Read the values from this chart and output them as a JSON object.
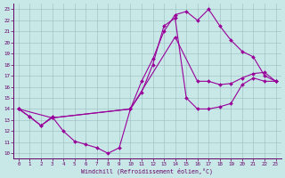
{
  "xlabel": "Windchill (Refroidissement éolien,°C)",
  "background_color": "#c8e8e8",
  "line_color": "#990099",
  "xlim": [
    -0.5,
    23.5
  ],
  "ylim": [
    9.5,
    23.5
  ],
  "xticks": [
    0,
    1,
    2,
    3,
    4,
    5,
    6,
    7,
    8,
    9,
    10,
    11,
    12,
    13,
    14,
    15,
    16,
    17,
    18,
    19,
    20,
    21,
    22,
    23
  ],
  "yticks": [
    10,
    11,
    12,
    13,
    14,
    15,
    16,
    17,
    18,
    19,
    20,
    21,
    22,
    23
  ],
  "curve1_x": [
    0,
    1,
    2,
    3,
    4,
    5,
    6,
    7,
    8,
    9,
    10,
    11,
    12,
    13,
    14,
    15,
    16,
    17,
    18,
    19,
    20,
    21,
    22,
    23
  ],
  "curve1_y": [
    14,
    13.3,
    12.5,
    13.3,
    12.0,
    11.1,
    10.8,
    10.5,
    10.0,
    10.5,
    14.0,
    15.5,
    18.0,
    21.5,
    22.2,
    15.0,
    14.0,
    14.0,
    14.2,
    14.5,
    16.2,
    16.8,
    16.5,
    16.5
  ],
  "curve2_x": [
    0,
    1,
    2,
    3,
    10,
    11,
    12,
    13,
    14,
    15,
    16,
    17,
    18,
    19,
    20,
    21,
    22,
    23
  ],
  "curve2_y": [
    14,
    13.3,
    12.5,
    13.2,
    14.0,
    16.5,
    18.5,
    21.0,
    22.5,
    22.8,
    22.0,
    23.0,
    21.5,
    20.2,
    19.2,
    18.7,
    17.0,
    16.5
  ],
  "curve3_x": [
    0,
    3,
    10,
    14,
    16,
    17,
    18,
    19,
    20,
    21,
    22,
    23
  ],
  "curve3_y": [
    14,
    13.2,
    14.0,
    20.5,
    16.5,
    16.5,
    16.2,
    16.3,
    16.8,
    17.2,
    17.3,
    16.5
  ]
}
